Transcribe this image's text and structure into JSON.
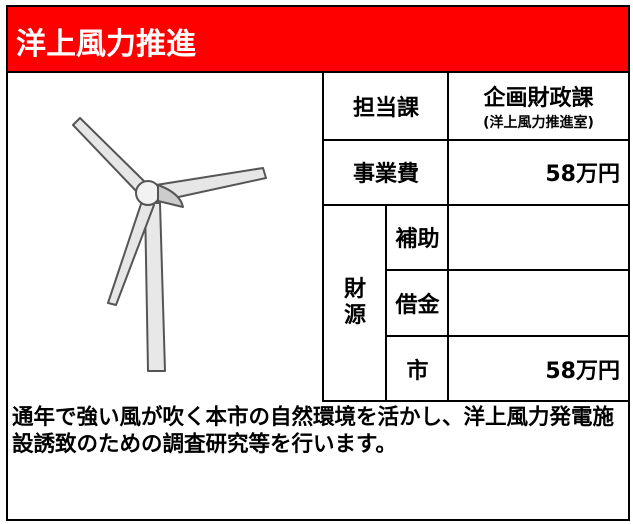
{
  "header": {
    "title": "洋上風力推進"
  },
  "table": {
    "department_label": "担当課",
    "department": "企画財政課",
    "department_sub": "(洋上風力推進室)",
    "cost_label": "事業費",
    "cost": "58万円",
    "funding_label": "財源",
    "funding": [
      {
        "label": "補助"
      },
      {
        "label": "借金"
      },
      {
        "label": "市",
        "value": "58万円"
      }
    ]
  },
  "description": "通年で強い風が吹く本市の自然環境を活かし、洋上風力発電施設誘致のための調査研究等を行います。"
}
